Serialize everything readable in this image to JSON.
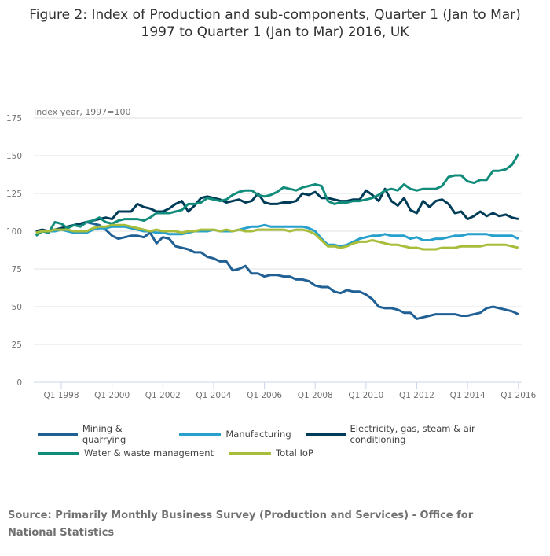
{
  "title_line1": "Figure 2: Index of Production and sub-components, Quarter 1 (Jan to Mar)",
  "title_line2": "1997 to Quarter 1 (Jan to Mar) 2016, UK",
  "source": "Source: Primarily Monthly Business Survey (Production and Services) - Office for National Statistics",
  "chart_data": {
    "type": "line",
    "title": "Figure 2: Index of Production and sub-components, Quarter 1 (Jan to Mar) 1997 to Quarter 1 (Jan to Mar) 2016, UK",
    "ylabel": "Index year, 1997=100",
    "xlabel": "",
    "ylim": [
      0,
      175
    ],
    "yticks": [
      0,
      25,
      50,
      75,
      100,
      125,
      150,
      175
    ],
    "x_start": "Q1 1997",
    "x_end": "Q1 2016",
    "x_frequency": "quarterly",
    "xtick_labels": [
      "Q1 1998",
      "Q1 2000",
      "Q1 2002",
      "Q1 2004",
      "Q1 2006",
      "Q1 2008",
      "Q1 2010",
      "Q1 2012",
      "Q1 2014",
      "Q1 2016"
    ],
    "xtick_index": [
      4,
      12,
      20,
      28,
      36,
      44,
      52,
      60,
      68,
      76
    ],
    "grid": true,
    "legend_position": "bottom",
    "series": [
      {
        "name": "Mining & quarrying",
        "color": "#206095",
        "values": [
          99,
          100,
          100,
          101,
          102,
          103,
          104,
          105,
          106,
          105,
          104,
          101,
          97,
          95,
          96,
          97,
          97,
          96,
          99,
          92,
          96,
          95,
          90,
          89,
          88,
          86,
          86,
          83,
          82,
          80,
          80,
          74,
          75,
          77,
          72,
          72,
          70,
          71,
          71,
          70,
          70,
          68,
          68,
          67,
          64,
          63,
          63,
          60,
          59,
          61,
          60,
          60,
          58,
          55,
          50,
          49,
          49,
          48,
          46,
          46,
          42,
          43,
          44,
          45,
          45,
          45,
          45,
          44,
          44,
          45,
          46,
          49,
          50,
          49,
          48,
          47,
          45
        ]
      },
      {
        "name": "Manufacturing",
        "color": "#27a0cc",
        "values": [
          99,
          100,
          100,
          100,
          101,
          100,
          99,
          99,
          99,
          101,
          102,
          102,
          103,
          103,
          103,
          102,
          101,
          100,
          100,
          99,
          99,
          98,
          98,
          98,
          99,
          100,
          100,
          100,
          101,
          100,
          100,
          100,
          101,
          102,
          103,
          103,
          104,
          103,
          103,
          103,
          103,
          103,
          103,
          102,
          100,
          95,
          91,
          91,
          90,
          91,
          93,
          95,
          96,
          97,
          97,
          98,
          97,
          97,
          97,
          95,
          96,
          94,
          94,
          95,
          95,
          96,
          97,
          97,
          98,
          98,
          98,
          98,
          97,
          97,
          97,
          97,
          95
        ]
      },
      {
        "name": "Electricity, gas, steam & air conditioning",
        "color": "#003c57",
        "values": [
          100,
          101,
          100,
          101,
          102,
          103,
          104,
          105,
          106,
          107,
          108,
          109,
          108,
          113,
          113,
          113,
          118,
          116,
          115,
          113,
          113,
          115,
          118,
          120,
          113,
          117,
          122,
          123,
          122,
          121,
          119,
          120,
          121,
          119,
          120,
          125,
          119,
          118,
          118,
          119,
          119,
          120,
          125,
          124,
          126,
          122,
          122,
          121,
          120,
          120,
          121,
          121,
          127,
          124,
          120,
          128,
          120,
          117,
          122,
          114,
          112,
          120,
          116,
          120,
          121,
          118,
          112,
          113,
          108,
          110,
          113,
          110,
          112,
          110,
          111,
          109,
          108
        ]
      },
      {
        "name": "Water & waste management",
        "color": "#118c7b",
        "values": [
          97,
          100,
          99,
          106,
          105,
          102,
          104,
          103,
          106,
          107,
          109,
          106,
          105,
          107,
          108,
          108,
          108,
          107,
          109,
          112,
          112,
          112,
          113,
          114,
          118,
          118,
          119,
          122,
          121,
          120,
          121,
          124,
          126,
          127,
          127,
          124,
          123,
          124,
          126,
          129,
          128,
          127,
          129,
          130,
          131,
          130,
          120,
          118,
          119,
          119,
          120,
          120,
          121,
          122,
          124,
          127,
          128,
          127,
          131,
          128,
          127,
          128,
          128,
          128,
          130,
          136,
          137,
          137,
          133,
          132,
          134,
          134,
          140,
          140,
          141,
          144,
          151
        ]
      },
      {
        "name": "Total IoP",
        "color": "#a8bd3a",
        "values": [
          99,
          100,
          100,
          101,
          101,
          101,
          100,
          100,
          100,
          102,
          103,
          103,
          104,
          104,
          104,
          103,
          102,
          101,
          100,
          101,
          100,
          100,
          100,
          99,
          100,
          100,
          101,
          101,
          101,
          100,
          101,
          100,
          101,
          100,
          100,
          101,
          101,
          101,
          101,
          101,
          100,
          101,
          101,
          100,
          98,
          94,
          90,
          90,
          89,
          90,
          92,
          93,
          93,
          94,
          93,
          92,
          91,
          91,
          90,
          89,
          89,
          88,
          88,
          88,
          89,
          89,
          89,
          90,
          90,
          90,
          90,
          91,
          91,
          91,
          91,
          90,
          89
        ]
      }
    ]
  }
}
